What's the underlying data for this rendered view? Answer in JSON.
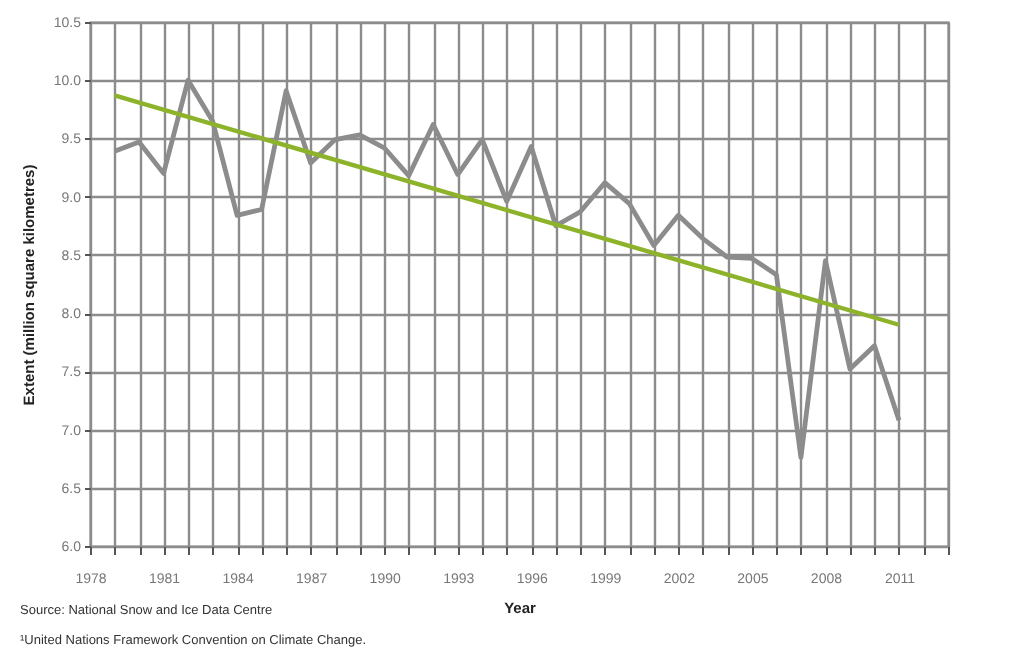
{
  "chart_data": {
    "type": "line",
    "xlabel": "Year",
    "ylabel": "Extent (million square kilometres)",
    "x": [
      1979,
      1980,
      1981,
      1982,
      1983,
      1984,
      1985,
      1986,
      1987,
      1988,
      1989,
      1990,
      1991,
      1992,
      1993,
      1994,
      1995,
      1996,
      1997,
      1998,
      1999,
      2000,
      2001,
      2002,
      2003,
      2004,
      2005,
      2006,
      2007,
      2008,
      2009,
      2010,
      2011
    ],
    "series": [
      {
        "color": "#8c8c8c",
        "values": [
          9.39,
          9.47,
          9.2,
          10.0,
          9.65,
          8.84,
          8.89,
          9.91,
          9.29,
          9.49,
          9.53,
          9.42,
          9.18,
          9.62,
          9.19,
          9.49,
          8.96,
          9.43,
          8.75,
          8.87,
          9.12,
          8.94,
          8.58,
          8.84,
          8.64,
          8.48,
          8.47,
          8.33,
          6.76,
          8.45,
          7.52,
          7.72,
          7.08
        ]
      },
      {
        "type": "line",
        "color": "#8db32a",
        "x": [
          1979,
          2011
        ],
        "values": [
          9.87,
          7.9
        ]
      }
    ],
    "xlim": [
      1978,
      2013
    ],
    "xticks": [
      1978,
      {
        "value": 1979,
        "label": null
      },
      {
        "value": 1980,
        "label": null
      },
      1981,
      {
        "value": 1982,
        "label": null
      },
      {
        "value": 1983,
        "label": null
      },
      1984,
      {
        "value": 1985,
        "label": null
      },
      {
        "value": 1986,
        "label": null
      },
      1987,
      {
        "value": 1988,
        "label": null
      },
      {
        "value": 1989,
        "label": null
      },
      1990,
      {
        "value": 1991,
        "label": null
      },
      {
        "value": 1992,
        "label": null
      },
      1993,
      {
        "value": 1994,
        "label": null
      },
      {
        "value": 1995,
        "label": null
      },
      1996,
      {
        "value": 1997,
        "label": null
      },
      {
        "value": 1998,
        "label": null
      },
      1999,
      {
        "value": 2000,
        "label": null
      },
      {
        "value": 2001,
        "label": null
      },
      2002,
      {
        "value": 2003,
        "label": null
      },
      {
        "value": 2004,
        "label": null
      },
      2005,
      {
        "value": 2006,
        "label": null
      },
      {
        "value": 2007,
        "label": null
      },
      2008,
      {
        "value": 2009,
        "label": null
      },
      {
        "value": 2010,
        "label": null
      },
      2011,
      {
        "value": 2012,
        "label": null
      },
      {
        "value": 2013,
        "label": null
      }
    ],
    "ylim": [
      6.0,
      10.5
    ],
    "yticks": [
      {
        "value": 6,
        "label": "6.0"
      },
      {
        "value": 6.5,
        "label": "6.5"
      },
      {
        "value": 7,
        "label": "7.0"
      },
      {
        "value": 7.5,
        "label": "7.5"
      },
      {
        "value": 8,
        "label": "8.0"
      },
      {
        "value": 8.5,
        "label": "8.5"
      },
      {
        "value": 9,
        "label": "9.0"
      },
      {
        "value": 9.5,
        "label": "9.5"
      },
      {
        "value": 10,
        "label": "10.0"
      },
      {
        "value": 10.5,
        "label": "10.5"
      }
    ],
    "grid": true,
    "annotations": [
      "Source: National Snow and Ice Data Centre",
      "¹United Nations Framework Convention on Climate Change."
    ]
  }
}
